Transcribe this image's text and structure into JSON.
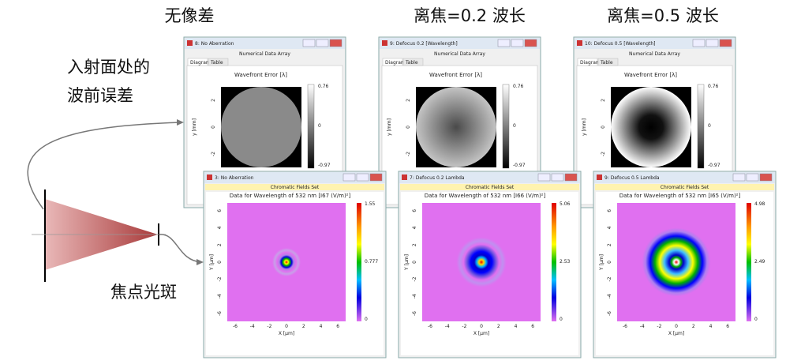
{
  "headings": [
    "无像差",
    "离焦=0.2 波长",
    "离焦=0.5 波长"
  ],
  "labels": {
    "wavefront": [
      "入射面处的",
      "波前误差"
    ],
    "spot": "焦点光斑"
  },
  "wavefront_windows": [
    {
      "title": "8: No Aberration",
      "subtitle": "Numerical Data Array",
      "tabs": [
        "Diagram",
        "Table"
      ],
      "plot_title": "Wavefront Error [λ]",
      "y_axis": "y [mm]",
      "y_ticks": [
        "2",
        "0",
        "-2"
      ],
      "colorbar": [
        "0.76",
        "0",
        "-0.97"
      ]
    },
    {
      "title": "9: Defocus 0.2 [Wavelength]",
      "subtitle": "Numerical Data Array",
      "tabs": [
        "Diagram",
        "Table"
      ],
      "plot_title": "Wavefront Error [λ]",
      "y_axis": "y [mm]",
      "y_ticks": [
        "2",
        "0",
        "-2"
      ],
      "colorbar": [
        "0.76",
        "0",
        "-0.97"
      ]
    },
    {
      "title": "10: Defocus 0.5 [Wavelength]",
      "subtitle": "Numerical Data Array",
      "tabs": [
        "Diagram",
        "Table"
      ],
      "plot_title": "Wavefront Error [λ]",
      "y_axis": "y [mm]",
      "y_ticks": [
        "2",
        "0",
        "-2"
      ],
      "colorbar": [
        "0.76",
        "0",
        "-0.97"
      ]
    }
  ],
  "spot_windows": [
    {
      "title": "3: No Aberration",
      "subtitle": "Chromatic Fields Set",
      "plot_title": "Data for Wavelength of 532 nm  [I67 (V/m)²]",
      "x_axis": "X [µm]",
      "y_axis": "Y [µm]",
      "ticks": [
        "-6",
        "-4",
        "-2",
        "0",
        "2",
        "4",
        "6"
      ],
      "colorbar": [
        "1.55",
        "0.777",
        "0"
      ]
    },
    {
      "title": "7: Defocus 0.2 Lambda",
      "subtitle": "Chromatic Fields Set",
      "plot_title": "Data for Wavelength of 532 nm  [I66 (V/m)²]",
      "x_axis": "X [µm]",
      "y_axis": "Y [µm]",
      "ticks": [
        "-6",
        "-4",
        "-2",
        "0",
        "2",
        "4",
        "6"
      ],
      "colorbar": [
        "5.06",
        "2.53",
        "0"
      ]
    },
    {
      "title": "9: Defocus 0.5 Lambda",
      "subtitle": "Chromatic Fields Set",
      "plot_title": "Data for Wavelength of 532 nm  [I65 (V/m)²]",
      "x_axis": "X [µm]",
      "y_axis": "Y [µm]",
      "ticks": [
        "-6",
        "-4",
        "-2",
        "0",
        "2",
        "4",
        "6"
      ],
      "colorbar": [
        "4.98",
        "2.49",
        "0"
      ]
    }
  ]
}
